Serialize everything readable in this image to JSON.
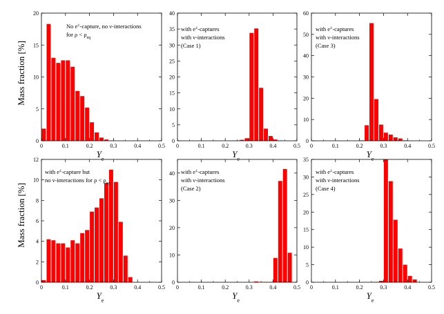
{
  "y_axis_label": "Mass fraction [%]",
  "chart_data": [
    {
      "type": "bar",
      "xlabel": "Y",
      "xlabel_sub": "e",
      "xlim": [
        0,
        0.5
      ],
      "ylim": [
        0,
        20
      ],
      "xticks": [
        "0",
        "0.1",
        "0.2",
        "0.3",
        "0.4",
        "0.5"
      ],
      "yticks": [
        "0",
        "5",
        "10",
        "15",
        "20"
      ],
      "annotation_lines": [
        "No e±-capture, no ν-interactions",
        "for ρ < ρeq"
      ],
      "bin_width": 0.02,
      "bin_starts": [
        0.0,
        0.02,
        0.04,
        0.06,
        0.08,
        0.1,
        0.12,
        0.14,
        0.16,
        0.18,
        0.2,
        0.22,
        0.24,
        0.26,
        0.28,
        0.3,
        0.32,
        0.34,
        0.36,
        0.38,
        0.4,
        0.42,
        0.44,
        0.46,
        0.48
      ],
      "values": [
        1.9,
        18.3,
        13.0,
        12.2,
        12.6,
        12.6,
        11.6,
        7.8,
        7.0,
        5.2,
        2.9,
        1.3,
        0.5,
        0.2,
        0.05,
        0,
        0,
        0,
        0,
        0,
        0,
        0,
        0,
        0,
        0
      ],
      "color": "#ff0000"
    },
    {
      "type": "bar",
      "xlabel": "Y",
      "xlabel_sub": "e",
      "xlim": [
        0,
        0.5
      ],
      "ylim": [
        0,
        40
      ],
      "xticks": [
        "0",
        "0.1",
        "0.2",
        "0.3",
        "0.4",
        "0.5"
      ],
      "yticks": [
        "0",
        "5",
        "10",
        "15",
        "20",
        "25",
        "30",
        "35",
        "40"
      ],
      "annotation_lines": [
        "with e±-captures",
        "with ν-interactions",
        "(Case 1)"
      ],
      "bin_width": 0.02,
      "bin_starts": [
        0.0,
        0.02,
        0.04,
        0.06,
        0.08,
        0.1,
        0.12,
        0.14,
        0.16,
        0.18,
        0.2,
        0.22,
        0.24,
        0.26,
        0.28,
        0.3,
        0.32,
        0.34,
        0.36,
        0.38,
        0.4,
        0.42,
        0.44,
        0.46,
        0.48
      ],
      "values": [
        0,
        0,
        0,
        0,
        0,
        0,
        0,
        0,
        0,
        0,
        0,
        0.05,
        0.1,
        0.3,
        0.8,
        33.8,
        35.2,
        16.6,
        3.8,
        1.5,
        0.4,
        0.1,
        0,
        0,
        0
      ],
      "color": "#ff0000"
    },
    {
      "type": "bar",
      "xlabel": "Y",
      "xlabel_sub": "e",
      "xlim": [
        0,
        0.5
      ],
      "ylim": [
        0,
        60
      ],
      "xticks": [
        "0",
        "0.1",
        "0.2",
        "0.3",
        "0.4",
        "0.5"
      ],
      "yticks": [
        "0",
        "10",
        "20",
        "30",
        "40",
        "50",
        "60"
      ],
      "annotation_lines": [
        "with e±-captures",
        "with ν-interactions",
        "(Case 3)"
      ],
      "bin_width": 0.02,
      "bin_starts": [
        0.0,
        0.02,
        0.04,
        0.06,
        0.08,
        0.1,
        0.12,
        0.14,
        0.16,
        0.18,
        0.2,
        0.22,
        0.24,
        0.26,
        0.28,
        0.3,
        0.32,
        0.34,
        0.36,
        0.38,
        0.4,
        0.42,
        0.44,
        0.46,
        0.48
      ],
      "values": [
        0,
        0,
        0,
        0,
        0,
        0,
        0,
        0,
        0,
        0,
        0.2,
        7.3,
        55.3,
        19.6,
        7.6,
        3.8,
        2.9,
        1.6,
        1.1,
        0.2,
        0.1,
        0,
        0,
        0,
        0
      ],
      "color": "#ff0000"
    },
    {
      "type": "bar",
      "xlabel": "Y",
      "xlabel_sub": "e",
      "xlim": [
        0,
        0.5
      ],
      "ylim": [
        0,
        12
      ],
      "xticks": [
        "0",
        "0.1",
        "0.2",
        "0.3",
        "0.4",
        "0.5"
      ],
      "yticks": [
        "0",
        "2",
        "4",
        "6",
        "8",
        "10",
        "12"
      ],
      "annotation_lines": [
        "with e±-capture but",
        "no ν-interactions for ρ < ρeq"
      ],
      "bin_width": 0.02,
      "bin_starts": [
        0.0,
        0.02,
        0.04,
        0.06,
        0.08,
        0.1,
        0.12,
        0.14,
        0.16,
        0.18,
        0.2,
        0.22,
        0.24,
        0.26,
        0.28,
        0.3,
        0.32,
        0.34,
        0.36,
        0.38,
        0.4,
        0.42,
        0.44,
        0.46,
        0.48
      ],
      "values": [
        0.2,
        4.2,
        4.1,
        3.8,
        3.8,
        3.4,
        4.1,
        3.8,
        4.8,
        5.1,
        6.9,
        7.3,
        8.2,
        9.7,
        11.0,
        9.8,
        5.9,
        2.6,
        0.5,
        0,
        0,
        0,
        0,
        0,
        0
      ],
      "color": "#ff0000"
    },
    {
      "type": "bar",
      "xlabel": "Y",
      "xlabel_sub": "e",
      "xlim": [
        0,
        0.5
      ],
      "ylim": [
        0,
        45
      ],
      "xticks": [
        "0",
        "0.1",
        "0.2",
        "0.3",
        "0.4",
        "0.5"
      ],
      "yticks": [
        "0",
        "10",
        "20",
        "30",
        "40"
      ],
      "annotation_lines": [
        "with e±-captures",
        "with ν-interactions",
        "(Case 2)"
      ],
      "bin_width": 0.02,
      "bin_starts": [
        0.0,
        0.02,
        0.04,
        0.06,
        0.08,
        0.1,
        0.12,
        0.14,
        0.16,
        0.18,
        0.2,
        0.22,
        0.24,
        0.26,
        0.28,
        0.3,
        0.32,
        0.34,
        0.36,
        0.38,
        0.4,
        0.42,
        0.44,
        0.46,
        0.48
      ],
      "values": [
        0,
        0,
        0,
        0,
        0,
        0,
        0,
        0,
        0,
        0,
        0,
        0,
        0,
        0,
        0,
        0,
        0.3,
        0.1,
        0.1,
        0.1,
        8.9,
        37.1,
        41.5,
        10.8,
        0
      ],
      "color": "#ff0000"
    },
    {
      "type": "bar",
      "xlabel": "Y",
      "xlabel_sub": "e",
      "xlim": [
        0,
        0.5
      ],
      "ylim": [
        0,
        35
      ],
      "xticks": [
        "0",
        "0.1",
        "0.2",
        "0.3",
        "0.4",
        "0.5"
      ],
      "yticks": [
        "0",
        "5",
        "10",
        "15",
        "20",
        "25",
        "30",
        "35"
      ],
      "annotation_lines": [
        "with e±-captures",
        "with ν-interactions",
        "(Case 4)"
      ],
      "bin_width": 0.02,
      "bin_starts": [
        0.0,
        0.02,
        0.04,
        0.06,
        0.08,
        0.1,
        0.12,
        0.14,
        0.16,
        0.18,
        0.2,
        0.22,
        0.24,
        0.26,
        0.28,
        0.3,
        0.32,
        0.34,
        0.36,
        0.38,
        0.4,
        0.42,
        0.44,
        0.46,
        0.48
      ],
      "values": [
        0,
        0,
        0,
        0,
        0,
        0,
        0,
        0,
        0,
        0,
        0,
        0,
        0,
        0.1,
        0.4,
        35.2,
        28.8,
        17.8,
        9.6,
        5.0,
        1.8,
        0.8,
        0,
        0,
        0
      ],
      "color": "#ff0000"
    }
  ]
}
